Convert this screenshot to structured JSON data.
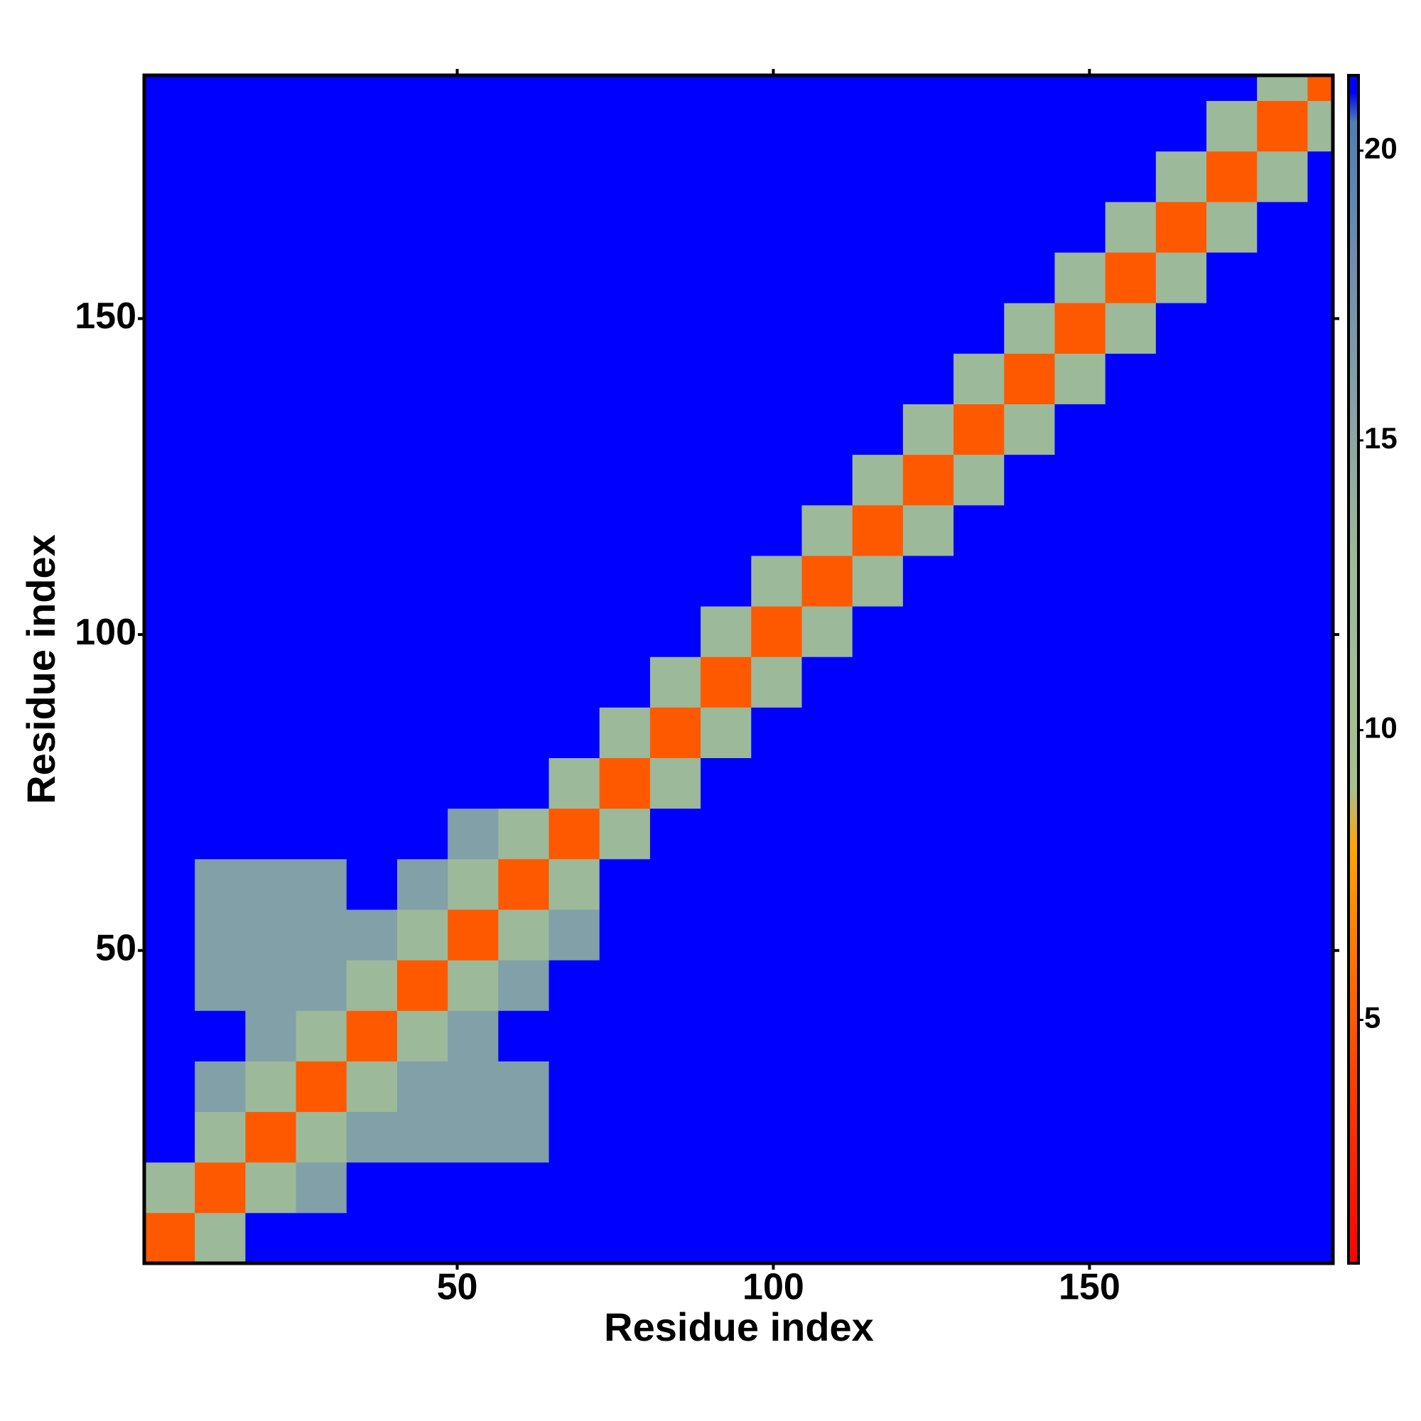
{
  "chart_data": {
    "type": "heatmap",
    "xlabel": "Residue index",
    "ylabel": "Residue index",
    "xlim": [
      0.5,
      188.5
    ],
    "ylim": [
      0.5,
      188.5
    ],
    "xticks": [
      50,
      100,
      150
    ],
    "yticks": [
      50,
      100,
      150
    ],
    "xbins": [
      0.5,
      8.5,
      16.5,
      24.5,
      32.5,
      40.5,
      48.5,
      56.5,
      64.5,
      72.5,
      80.5,
      88.5,
      96.5,
      104.5,
      112.5,
      120.5,
      128.5,
      136.5,
      144.5,
      152.5,
      160.5,
      168.5,
      176.5,
      184.5,
      192.5
    ],
    "ybins": [
      0.5,
      8.5,
      16.5,
      24.5,
      32.5,
      40.5,
      48.5,
      56.5,
      64.5,
      72.5,
      80.5,
      88.5,
      96.5,
      104.5,
      112.5,
      120.5,
      128.5,
      136.5,
      144.5,
      152.5,
      160.5,
      168.5,
      176.5,
      184.5,
      192.5
    ],
    "z": [
      [
        5,
        13,
        21,
        21,
        21,
        21,
        21,
        21,
        21,
        21,
        21,
        21,
        21,
        21,
        21,
        21,
        21,
        21,
        21,
        21,
        21,
        21,
        21,
        21
      ],
      [
        13,
        5,
        13,
        16,
        21,
        21,
        21,
        21,
        21,
        21,
        21,
        21,
        21,
        21,
        21,
        21,
        21,
        21,
        21,
        21,
        21,
        21,
        21,
        21
      ],
      [
        21,
        13,
        5,
        13,
        16,
        16,
        16,
        16,
        21,
        21,
        21,
        21,
        21,
        21,
        21,
        21,
        21,
        21,
        21,
        21,
        21,
        21,
        21,
        21
      ],
      [
        21,
        16,
        13,
        5,
        13,
        16,
        16,
        16,
        21,
        21,
        21,
        21,
        21,
        21,
        21,
        21,
        21,
        21,
        21,
        21,
        21,
        21,
        21,
        21
      ],
      [
        21,
        21,
        16,
        13,
        5,
        13,
        16,
        21,
        21,
        21,
        21,
        21,
        21,
        21,
        21,
        21,
        21,
        21,
        21,
        21,
        21,
        21,
        21,
        21
      ],
      [
        21,
        16,
        16,
        16,
        13,
        5,
        13,
        16,
        21,
        21,
        21,
        21,
        21,
        21,
        21,
        21,
        21,
        21,
        21,
        21,
        21,
        21,
        21,
        21
      ],
      [
        21,
        16,
        16,
        16,
        16,
        13,
        5,
        13,
        16,
        21,
        21,
        21,
        21,
        21,
        21,
        21,
        21,
        21,
        21,
        21,
        21,
        21,
        21,
        21
      ],
      [
        21,
        16,
        16,
        16,
        21,
        16,
        13,
        5,
        13,
        21,
        21,
        21,
        21,
        21,
        21,
        21,
        21,
        21,
        21,
        21,
        21,
        21,
        21,
        21
      ],
      [
        21,
        21,
        21,
        21,
        21,
        21,
        16,
        13,
        5,
        13,
        21,
        21,
        21,
        21,
        21,
        21,
        21,
        21,
        21,
        21,
        21,
        21,
        21,
        21
      ],
      [
        21,
        21,
        21,
        21,
        21,
        21,
        21,
        21,
        13,
        5,
        13,
        21,
        21,
        21,
        21,
        21,
        21,
        21,
        21,
        21,
        21,
        21,
        21,
        21
      ],
      [
        21,
        21,
        21,
        21,
        21,
        21,
        21,
        21,
        21,
        13,
        5,
        13,
        21,
        21,
        21,
        21,
        21,
        21,
        21,
        21,
        21,
        21,
        21,
        21
      ],
      [
        21,
        21,
        21,
        21,
        21,
        21,
        21,
        21,
        21,
        21,
        13,
        5,
        13,
        21,
        21,
        21,
        21,
        21,
        21,
        21,
        21,
        21,
        21,
        21
      ],
      [
        21,
        21,
        21,
        21,
        21,
        21,
        21,
        21,
        21,
        21,
        21,
        13,
        5,
        13,
        21,
        21,
        21,
        21,
        21,
        21,
        21,
        21,
        21,
        21
      ],
      [
        21,
        21,
        21,
        21,
        21,
        21,
        21,
        21,
        21,
        21,
        21,
        21,
        13,
        5,
        13,
        21,
        21,
        21,
        21,
        21,
        21,
        21,
        21,
        21
      ],
      [
        21,
        21,
        21,
        21,
        21,
        21,
        21,
        21,
        21,
        21,
        21,
        21,
        21,
        13,
        5,
        13,
        21,
        21,
        21,
        21,
        21,
        21,
        21,
        21
      ],
      [
        21,
        21,
        21,
        21,
        21,
        21,
        21,
        21,
        21,
        21,
        21,
        21,
        21,
        21,
        13,
        5,
        13,
        21,
        21,
        21,
        21,
        21,
        21,
        21
      ],
      [
        21,
        21,
        21,
        21,
        21,
        21,
        21,
        21,
        21,
        21,
        21,
        21,
        21,
        21,
        21,
        13,
        5,
        13,
        21,
        21,
        21,
        21,
        21,
        21
      ],
      [
        21,
        21,
        21,
        21,
        21,
        21,
        21,
        21,
        21,
        21,
        21,
        21,
        21,
        21,
        21,
        21,
        13,
        5,
        13,
        21,
        21,
        21,
        21,
        21
      ],
      [
        21,
        21,
        21,
        21,
        21,
        21,
        21,
        21,
        21,
        21,
        21,
        21,
        21,
        21,
        21,
        21,
        21,
        13,
        5,
        13,
        21,
        21,
        21,
        21
      ],
      [
        21,
        21,
        21,
        21,
        21,
        21,
        21,
        21,
        21,
        21,
        21,
        21,
        21,
        21,
        21,
        21,
        21,
        21,
        13,
        5,
        13,
        21,
        21,
        21
      ],
      [
        21,
        21,
        21,
        21,
        21,
        21,
        21,
        21,
        21,
        21,
        21,
        21,
        21,
        21,
        21,
        21,
        21,
        21,
        21,
        13,
        5,
        13,
        21,
        21
      ],
      [
        21,
        21,
        21,
        21,
        21,
        21,
        21,
        21,
        21,
        21,
        21,
        21,
        21,
        21,
        21,
        21,
        21,
        21,
        21,
        21,
        13,
        5,
        13,
        21
      ],
      [
        21,
        21,
        21,
        21,
        21,
        21,
        21,
        21,
        21,
        21,
        21,
        21,
        21,
        21,
        21,
        21,
        21,
        21,
        21,
        21,
        21,
        13,
        5,
        13
      ],
      [
        21,
        21,
        21,
        21,
        21,
        21,
        21,
        21,
        21,
        21,
        21,
        21,
        21,
        21,
        21,
        21,
        21,
        21,
        21,
        21,
        21,
        21,
        13,
        5
      ]
    ],
    "zlim": [
      0.8,
      21.3
    ],
    "zticks": [
      5,
      10,
      15,
      20
    ],
    "colorscale": [
      [
        0.8,
        "#ff0000"
      ],
      [
        4,
        "#ff4000"
      ],
      [
        8,
        "#ffa500"
      ],
      [
        9,
        "#a9c08c"
      ],
      [
        13,
        "#9cb99a"
      ],
      [
        18,
        "#6f8fb0"
      ],
      [
        20.5,
        "#4f7fb5"
      ],
      [
        21,
        "#0000ff"
      ],
      [
        21.3,
        "#0000ff"
      ]
    ]
  }
}
